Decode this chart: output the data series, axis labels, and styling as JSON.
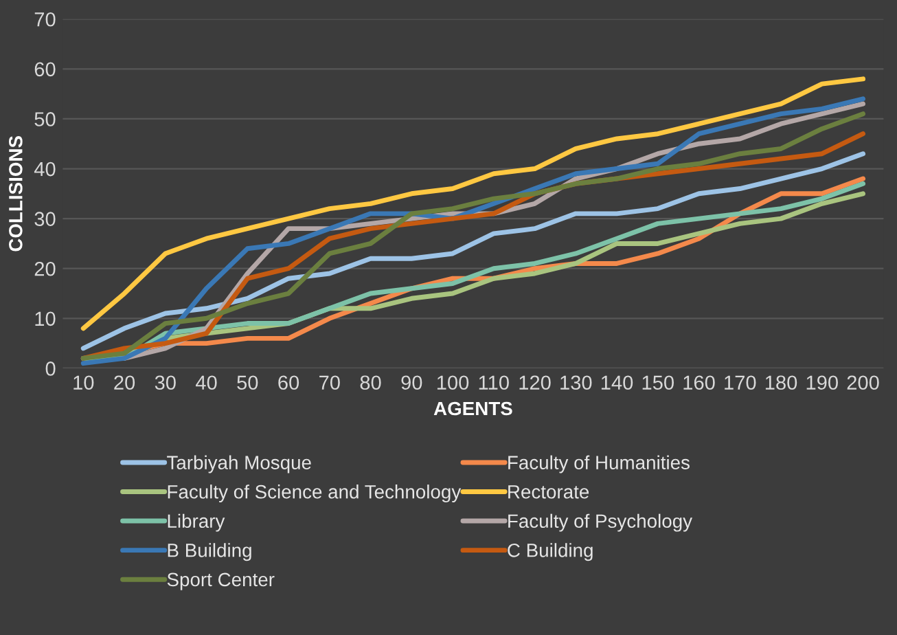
{
  "chart_data": {
    "type": "line",
    "xlabel": "AGENTS",
    "ylabel": "COLLISIONS",
    "categories": [
      "10",
      "20",
      "30",
      "40",
      "50",
      "60",
      "70",
      "80",
      "90",
      "100",
      "110",
      "120",
      "130",
      "140",
      "150",
      "160",
      "170",
      "180",
      "190",
      "200"
    ],
    "ylim": [
      0,
      70
    ],
    "yticks": [
      0,
      10,
      20,
      30,
      40,
      50,
      60,
      70
    ],
    "grid": "y",
    "legend": "bottom",
    "series": [
      {
        "name": "Tarbiyah Mosque",
        "color": "#9dc3e6",
        "values": [
          4,
          8,
          11,
          12,
          14,
          18,
          19,
          22,
          22,
          23,
          27,
          28,
          31,
          31,
          32,
          35,
          36,
          38,
          40,
          43
        ]
      },
      {
        "name": "Faculty of Humanities",
        "color": "#f4894b",
        "values": [
          2,
          3,
          5,
          5,
          6,
          6,
          10,
          13,
          16,
          18,
          18,
          20,
          21,
          21,
          23,
          26,
          31,
          35,
          35,
          38
        ]
      },
      {
        "name": "Faculty of Science and Technology",
        "color": "#a9c47f",
        "values": [
          2,
          2,
          6,
          7,
          8,
          9,
          12,
          12,
          14,
          15,
          18,
          19,
          21,
          25,
          25,
          27,
          29,
          30,
          33,
          35
        ]
      },
      {
        "name": "Rectorate",
        "color": "#ffc842",
        "values": [
          8,
          15,
          23,
          26,
          28,
          30,
          32,
          33,
          35,
          36,
          39,
          40,
          44,
          46,
          47,
          49,
          51,
          53,
          57,
          58
        ]
      },
      {
        "name": "Library",
        "color": "#7dc2a8",
        "values": [
          2,
          2,
          7,
          8,
          9,
          9,
          12,
          15,
          16,
          17,
          20,
          21,
          23,
          26,
          29,
          30,
          31,
          32,
          34,
          37
        ]
      },
      {
        "name": "Faculty of Psychology",
        "color": "#b4a7a7",
        "values": [
          null,
          2,
          4,
          8,
          19,
          28,
          28,
          29,
          30,
          31,
          31,
          33,
          38,
          40,
          43,
          45,
          46,
          49,
          51,
          53
        ]
      },
      {
        "name": "B Building",
        "color": "#3a78b5",
        "values": [
          1,
          2,
          6,
          16,
          24,
          25,
          28,
          31,
          31,
          30,
          33,
          36,
          39,
          40,
          41,
          47,
          49,
          51,
          52,
          54
        ]
      },
      {
        "name": "C Building",
        "color": "#c55a11",
        "values": [
          2,
          4,
          5,
          7,
          18,
          20,
          26,
          28,
          29,
          30,
          31,
          35,
          37,
          38,
          39,
          40,
          41,
          42,
          43,
          47
        ]
      },
      {
        "name": "Sport Center",
        "color": "#6b7f3f",
        "values": [
          2,
          3,
          9,
          10,
          13,
          15,
          23,
          25,
          31,
          32,
          34,
          35,
          37,
          38,
          40,
          41,
          43,
          44,
          48,
          51
        ]
      }
    ]
  }
}
